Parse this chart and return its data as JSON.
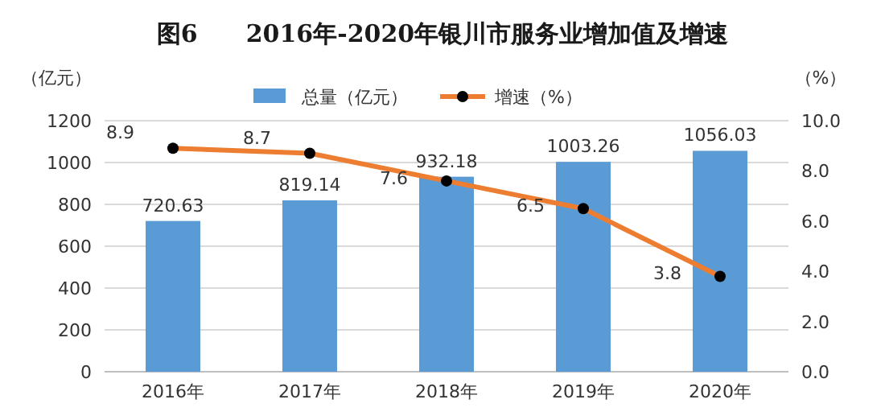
{
  "chart_data": {
    "type": "bar",
    "title": "图6　　2016年-2020年银川市服务业增加值及增速",
    "ylabel": "（亿元）",
    "y2label": "（%）",
    "categories": [
      "2016年",
      "2017年",
      "2018年",
      "2019年",
      "2020年"
    ],
    "series": [
      {
        "name": "总量（亿元）",
        "type": "bar",
        "color": "#5b9bd5",
        "values": [
          720.63,
          819.14,
          932.18,
          1003.26,
          1056.03
        ]
      },
      {
        "name": "增速（%）",
        "type": "line",
        "axis": "y2",
        "color": "#ed7d31",
        "marker": "circle",
        "values": [
          8.9,
          8.7,
          7.6,
          6.5,
          3.8
        ]
      }
    ],
    "ylim": [
      0,
      1200
    ],
    "yticks": [
      0,
      200,
      400,
      600,
      800,
      1000,
      1200
    ],
    "y2lim": [
      0,
      10
    ],
    "y2ticks": [
      {
        "value": 0,
        "label": "0.0"
      },
      {
        "value": 2,
        "label": "2.0"
      },
      {
        "value": 4,
        "label": "4.0"
      },
      {
        "value": 6,
        "label": "6.0"
      },
      {
        "value": 8,
        "label": "8.0"
      },
      {
        "value": 10,
        "label": "10.0"
      }
    ],
    "grid": "y",
    "legend": "top",
    "data_labels": true
  }
}
